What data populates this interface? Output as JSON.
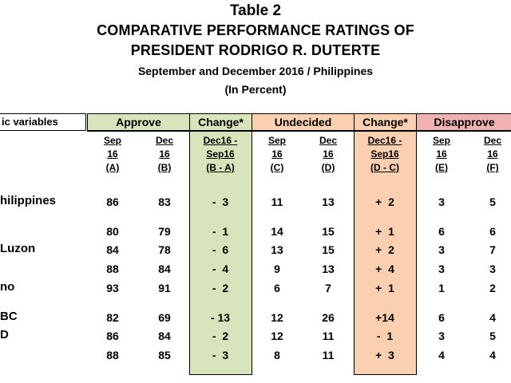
{
  "title": {
    "table_no": "Table 2",
    "line1": "COMPARATIVE PERFORMANCE RATINGS OF",
    "line2": "PRESIDENT RODRIGO R. DUTERTE",
    "line3": "September and December 2016 / Philippines",
    "line4": "(In Percent)"
  },
  "headers": {
    "vars": "ic variables",
    "approve": "Approve",
    "change1": "Change*",
    "undecided": "Undecided",
    "change2": "Change*",
    "disapprove": "Disapprove"
  },
  "subheaders": [
    [
      "Sep",
      "16",
      "(A)"
    ],
    [
      "Dec",
      "16",
      "(B)"
    ],
    [
      "Dec16 -",
      "Sep16",
      "(B - A)"
    ],
    [
      "Sep",
      "16",
      "(C)"
    ],
    [
      "Dec",
      "16",
      "(D)"
    ],
    [
      "Dec16 -",
      "Sep16",
      "(D - C)"
    ],
    [
      "Sep",
      "16",
      "(E)"
    ],
    [
      "Dec",
      "16",
      "(F)"
    ]
  ],
  "rows": [
    {
      "label": "hilippines",
      "values": [
        "86",
        "83",
        "-  3",
        "11",
        "13",
        "+  2",
        "3",
        "5"
      ]
    },
    {
      "label": "",
      "values": [
        "80",
        "79",
        "-  1",
        "14",
        "15",
        "+  1",
        "6",
        "6"
      ]
    },
    {
      "label": " Luzon",
      "values": [
        "84",
        "78",
        "-  6",
        "13",
        "15",
        "+  2",
        "3",
        "7"
      ]
    },
    {
      "label": "",
      "values": [
        "88",
        "84",
        "-  4",
        "9",
        "13",
        "+  4",
        "3",
        "3"
      ]
    },
    {
      "label": "no",
      "values": [
        "93",
        "91",
        "-  2",
        "6",
        "7",
        "+  1",
        "1",
        "2"
      ]
    },
    {
      "label": "BC",
      "values": [
        "82",
        "69",
        "- 13",
        "12",
        "26",
        "+14",
        "6",
        "4"
      ]
    },
    {
      "label": "D",
      "values": [
        "86",
        "84",
        "-  2",
        "12",
        "11",
        "-  1",
        "3",
        "5"
      ]
    },
    {
      "label": "",
      "values": [
        "88",
        "85",
        "-  3",
        "8",
        "11",
        "+  3",
        "4",
        "4"
      ]
    }
  ],
  "colors": {
    "approve_bg": "#d8e5bc",
    "undecided_bg": "#fbd0b0",
    "disapprove_bg": "#f0b1b1"
  }
}
